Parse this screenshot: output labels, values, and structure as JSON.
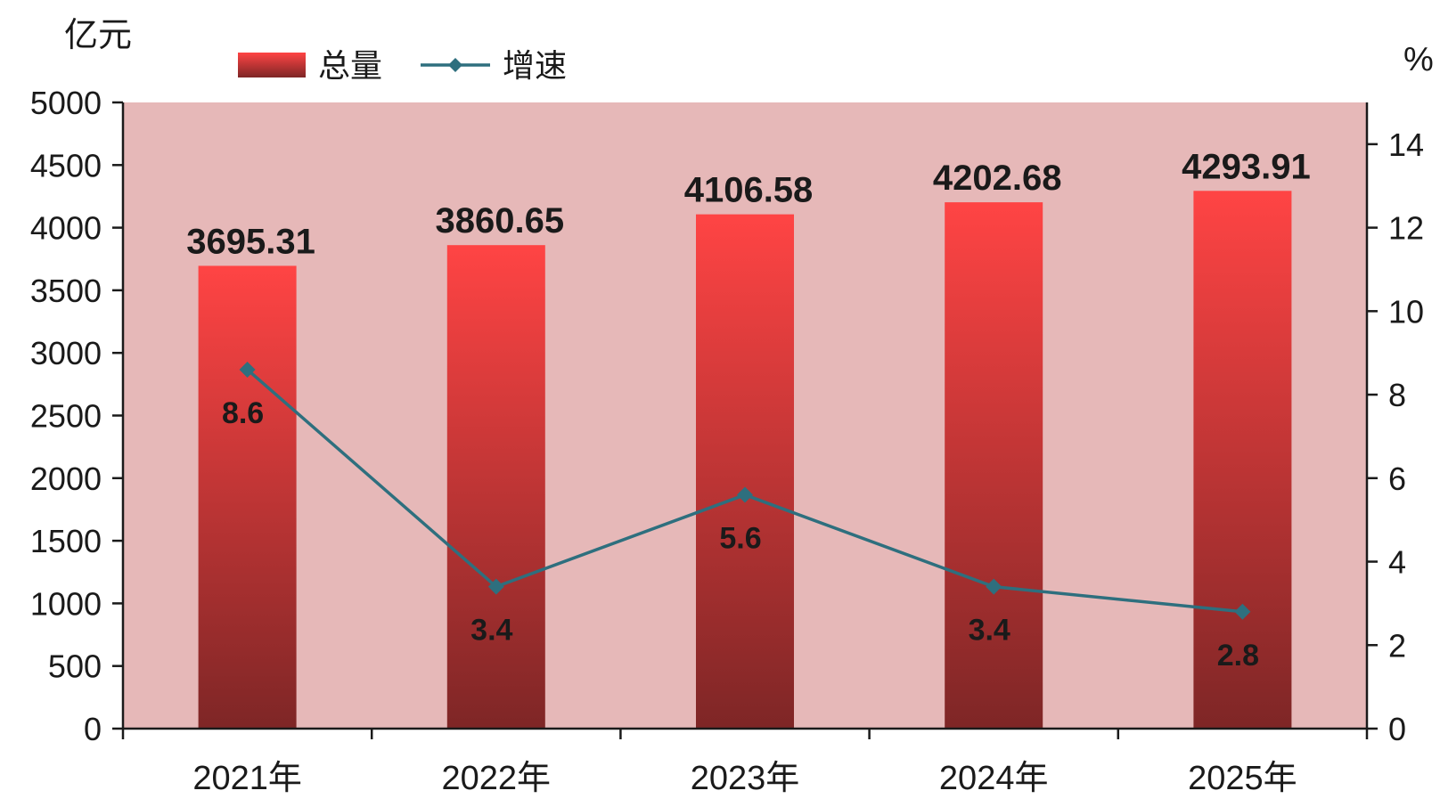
{
  "chart_data": {
    "type": "bar",
    "categories": [
      "2021年",
      "2022年",
      "2023年",
      "2024年",
      "2025年"
    ],
    "series": [
      {
        "name": "总量",
        "type": "bar",
        "axis": "left",
        "values": [
          3695.31,
          3860.65,
          4106.58,
          4202.68,
          4293.91
        ],
        "labels": [
          "3695.31",
          "3860.65",
          "4106.58",
          "4202.68",
          "4293.91"
        ],
        "color_top": "#ff4444",
        "color_bottom": "#7e2626"
      },
      {
        "name": "增速",
        "type": "line",
        "axis": "right",
        "values": [
          8.6,
          3.4,
          5.6,
          3.4,
          2.8
        ],
        "labels": [
          "8.6",
          "3.4",
          "5.6",
          "3.4",
          "2.8"
        ],
        "color": "#2e6f7e",
        "marker": "diamond"
      }
    ],
    "y_left": {
      "unit": "亿元",
      "range": [
        0,
        5000
      ],
      "ticks": [
        0,
        500,
        1000,
        1500,
        2000,
        2500,
        3000,
        3500,
        4000,
        4500,
        5000
      ]
    },
    "y_right": {
      "unit": "%",
      "range": [
        0,
        15
      ],
      "ticks": [
        0,
        2,
        4,
        6,
        8,
        10,
        12,
        14
      ]
    },
    "legend": {
      "position": "top-left"
    },
    "grid": false,
    "plot_background": "#e6b8b8"
  }
}
